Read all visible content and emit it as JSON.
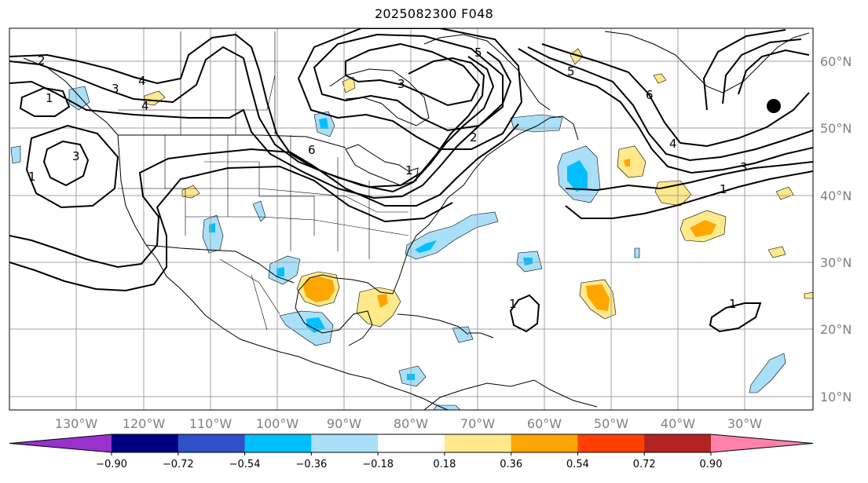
{
  "title": "2025082300 F048",
  "lat_labels": [
    "60°N",
    "50°N",
    "40°N",
    "30°N",
    "20°N",
    "10°N"
  ],
  "lon_labels": [
    "130°W",
    "120°W",
    "110°W",
    "100°W",
    "90°W",
    "80°W",
    "70°W",
    "60°W",
    "50°W",
    "40°W",
    "30°W"
  ],
  "contour_labels": [
    "2",
    "3",
    "4",
    "1",
    "3",
    "1",
    "3",
    "6",
    "2",
    "1",
    "6",
    "5",
    "4",
    "3",
    "1",
    "5",
    "4",
    "1",
    "1"
  ],
  "colorbar": {
    "ticks": [
      "−0.90",
      "−0.72",
      "−0.54",
      "−0.36",
      "−0.18",
      "0.18",
      "0.36",
      "0.54",
      "0.72",
      "0.90"
    ],
    "colors": [
      "#9932cc",
      "#000080",
      "#3050c8",
      "#00bfff",
      "#aadff8",
      "#ffffff",
      "#ffe98a",
      "#ffa500",
      "#ff4000",
      "#b22222",
      "#ff82ab"
    ],
    "extend": "both"
  },
  "marker": {
    "name": "storm-center-marker",
    "color": "#000000"
  },
  "map_colors": {
    "coast": "#000000",
    "grid": "#a0a0a0",
    "positive": "#ffe98a",
    "positive_strong": "#ffa500",
    "negative": "#aadff8",
    "negative_strong": "#00bfff"
  }
}
